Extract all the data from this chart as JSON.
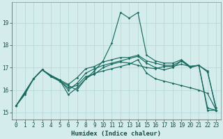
{
  "title": "",
  "xlabel": "Humidex (Indice chaleur)",
  "xlim": [
    -0.5,
    23.5
  ],
  "ylim": [
    14.7,
    19.9
  ],
  "background_color": "#d4ecec",
  "grid_color": "#b8d8d8",
  "line_color": "#1a6b60",
  "xticks": [
    0,
    1,
    2,
    3,
    4,
    5,
    6,
    7,
    8,
    9,
    10,
    11,
    12,
    13,
    14,
    15,
    16,
    17,
    18,
    19,
    20,
    21,
    22,
    23
  ],
  "yticks": [
    15,
    16,
    17,
    18,
    19
  ],
  "lines": [
    [
      15.3,
      15.8,
      16.5,
      16.9,
      16.6,
      16.4,
      16.1,
      16.2,
      16.6,
      16.7,
      17.0,
      17.15,
      17.25,
      17.2,
      17.1,
      17.0,
      16.95,
      17.05,
      17.05,
      17.15,
      17.05,
      17.1,
      15.2,
      15.1
    ],
    [
      15.3,
      15.9,
      16.5,
      16.9,
      16.6,
      16.4,
      16.2,
      16.0,
      16.5,
      16.85,
      17.3,
      18.1,
      19.45,
      19.2,
      19.45,
      17.55,
      17.3,
      17.2,
      17.2,
      17.35,
      17.05,
      17.1,
      16.85,
      15.1
    ],
    [
      15.3,
      15.9,
      16.5,
      16.9,
      16.65,
      16.45,
      16.25,
      16.55,
      16.95,
      17.05,
      17.25,
      17.35,
      17.45,
      17.45,
      17.55,
      17.3,
      17.2,
      17.1,
      17.1,
      17.3,
      17.05,
      17.1,
      15.1,
      15.1
    ],
    [
      15.3,
      15.9,
      16.5,
      16.9,
      16.65,
      16.45,
      15.8,
      16.1,
      16.5,
      16.75,
      16.85,
      16.95,
      17.05,
      17.15,
      17.35,
      16.75,
      16.5,
      16.4,
      16.3,
      16.2,
      16.1,
      16.0,
      15.85,
      15.1
    ],
    [
      15.3,
      15.85,
      16.5,
      16.9,
      16.65,
      16.45,
      16.0,
      16.3,
      16.75,
      16.95,
      17.1,
      17.2,
      17.3,
      17.4,
      17.5,
      17.2,
      17.0,
      16.9,
      17.0,
      17.3,
      17.0,
      17.1,
      16.8,
      15.2
    ]
  ]
}
